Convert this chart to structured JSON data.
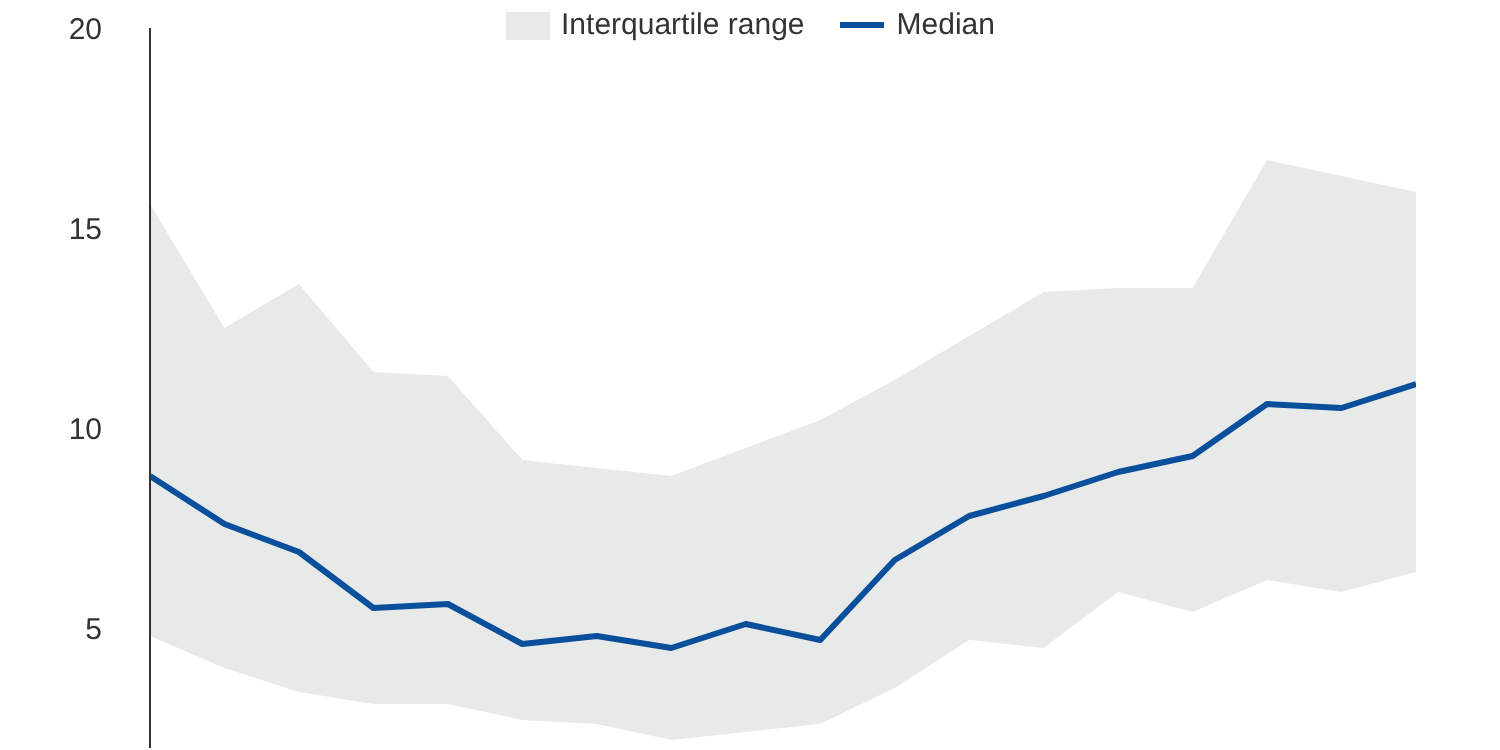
{
  "chart_data": {
    "type": "line",
    "categories": [
      null,
      null,
      null,
      null,
      null,
      null,
      null,
      null,
      null,
      null,
      null,
      null,
      null,
      null,
      null,
      null,
      null,
      null
    ],
    "series": [
      {
        "name": "Interquartile range",
        "type": "area",
        "color": "#e8e9e9",
        "values": [
          null,
          null,
          null,
          null,
          null,
          null,
          null,
          null,
          null,
          null,
          null,
          null,
          null,
          null,
          null,
          null,
          null,
          null
        ],
        "lower": [
          4.8,
          4.0,
          3.4,
          3.1,
          3.1,
          2.7,
          2.6,
          2.2,
          2.4,
          2.6,
          3.5,
          4.7,
          4.5,
          5.9,
          5.4,
          6.2,
          5.9,
          6.4
        ],
        "upper": [
          15.6,
          12.5,
          13.6,
          11.4,
          11.3,
          9.2,
          9.0,
          8.8,
          9.5,
          10.2,
          11.2,
          12.3,
          13.4,
          13.5,
          13.5,
          16.7,
          16.3,
          15.9
        ]
      },
      {
        "name": "Median",
        "type": "line",
        "color": "#0a4f9b",
        "values": [
          8.8,
          7.6,
          6.9,
          5.5,
          5.6,
          4.6,
          4.8,
          4.5,
          5.1,
          4.7,
          6.7,
          7.8,
          8.3,
          8.9,
          9.3,
          10.6,
          10.5,
          11.1
        ]
      }
    ],
    "ylim": [
      2,
      20
    ],
    "yticks": [
      5,
      10,
      15,
      20
    ],
    "grid": false,
    "legend": "top",
    "tick_labels": "y",
    "marker": "none",
    "line_style": "solid"
  }
}
